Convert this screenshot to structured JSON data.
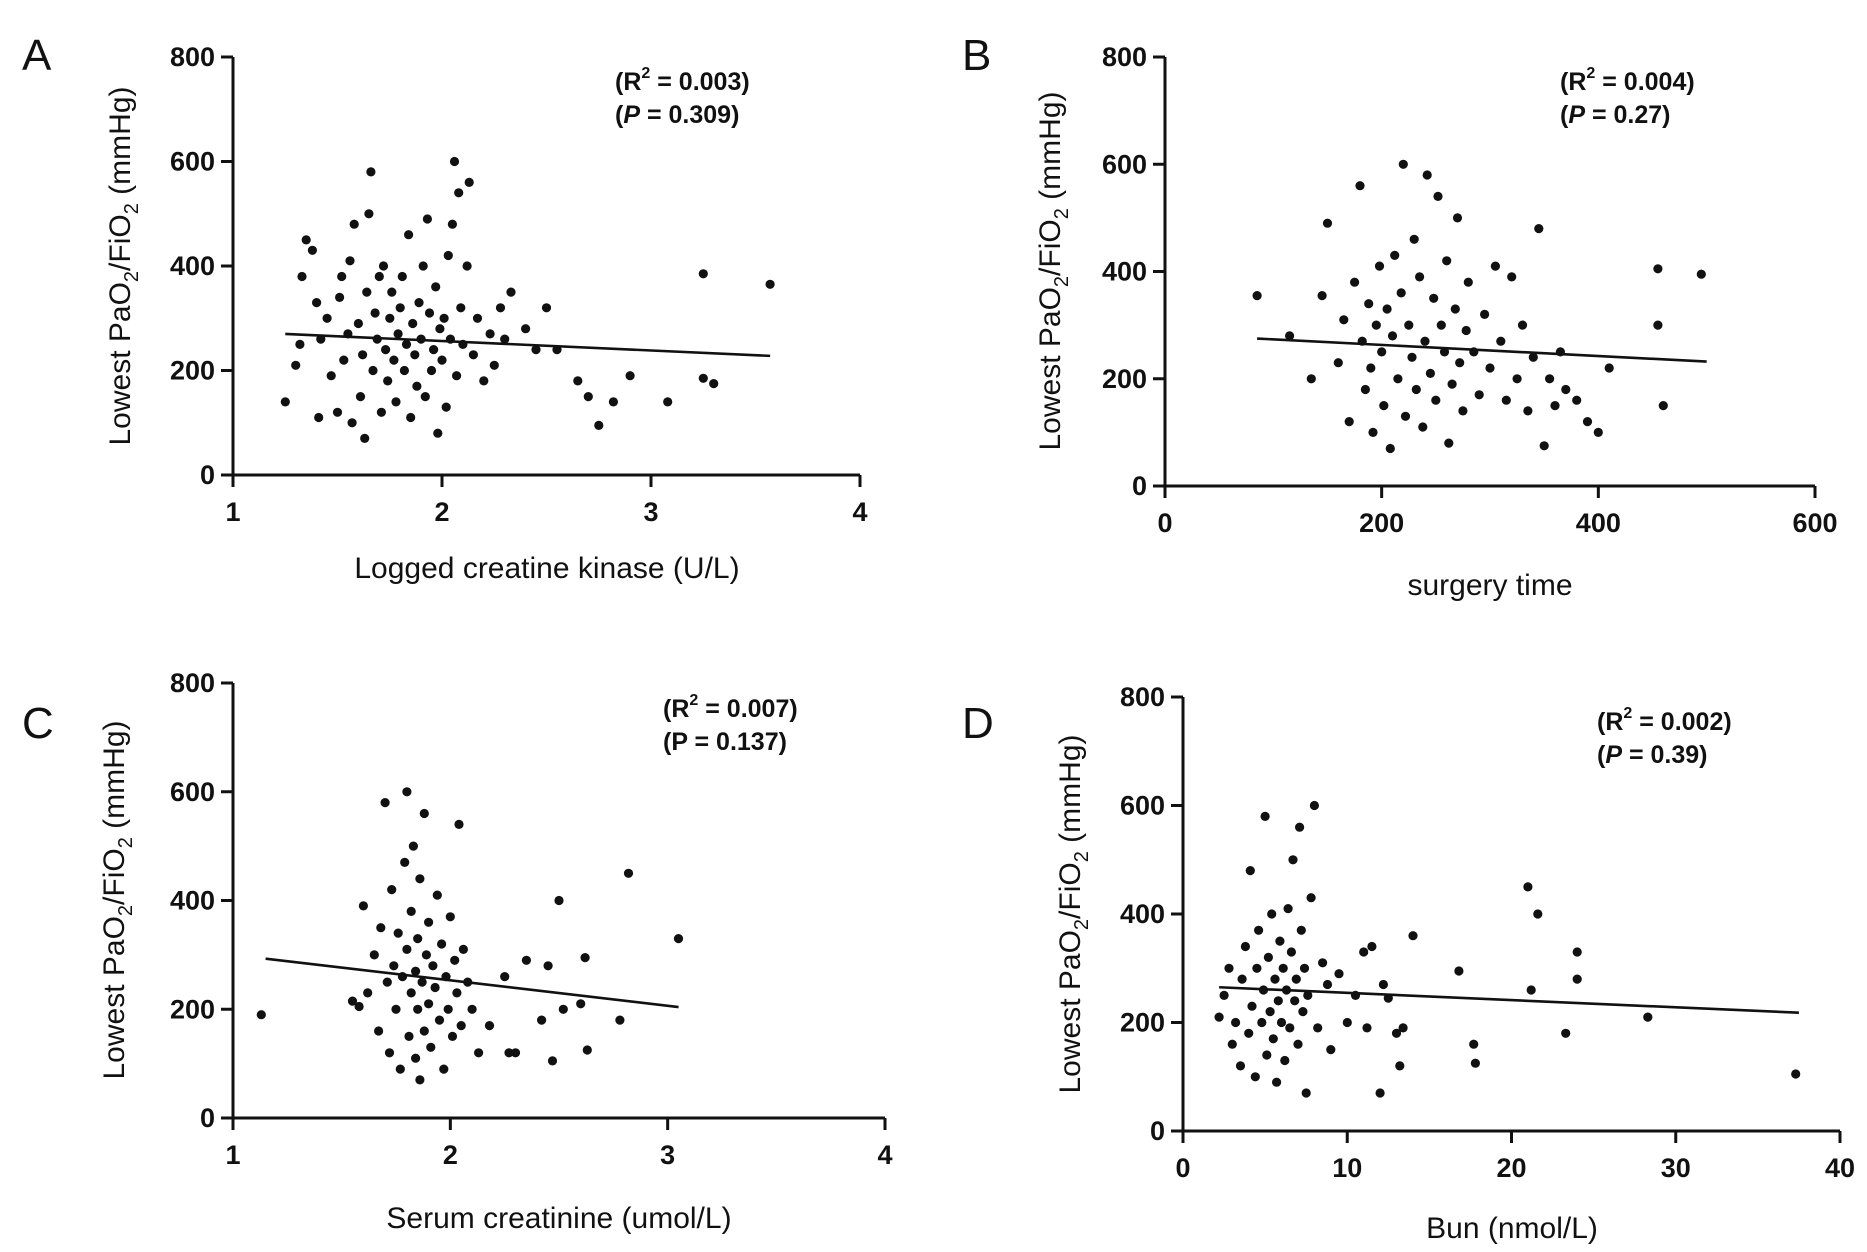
{
  "figure": {
    "y_axis_label_parts": [
      "Lowest PaO",
      "2",
      "/FiO",
      "2",
      " (mmHg)"
    ],
    "point_color": "#111111",
    "line_color": "#111111"
  },
  "chart_data": [
    {
      "type": "scatter",
      "panel": "A",
      "xlabel": "Logged creatine kinase (U/L)",
      "ylabel": "Lowest PaO2/FiO2 (mmHg)",
      "xlim": [
        1,
        4
      ],
      "ylim": [
        0,
        800
      ],
      "xticks": [
        1,
        2,
        3,
        4
      ],
      "yticks": [
        0,
        200,
        400,
        600,
        800
      ],
      "annotation": {
        "r2_prefix": "(R",
        "r2_sup": "2",
        "r2_value": " = 0.003)",
        "p_open": "(",
        "p_symbol": "P",
        "p_value": " = 0.309)",
        "p_italic": true
      },
      "regression": {
        "x": [
          1.25,
          3.57
        ],
        "y": [
          270,
          228
        ]
      },
      "points": [
        [
          1.25,
          140
        ],
        [
          1.3,
          210
        ],
        [
          1.32,
          250
        ],
        [
          1.33,
          380
        ],
        [
          1.35,
          450
        ],
        [
          1.38,
          430
        ],
        [
          1.4,
          330
        ],
        [
          1.41,
          110
        ],
        [
          1.42,
          260
        ],
        [
          1.45,
          300
        ],
        [
          1.47,
          190
        ],
        [
          1.5,
          120
        ],
        [
          1.51,
          340
        ],
        [
          1.52,
          380
        ],
        [
          1.53,
          220
        ],
        [
          1.55,
          270
        ],
        [
          1.56,
          410
        ],
        [
          1.57,
          100
        ],
        [
          1.58,
          480
        ],
        [
          1.6,
          290
        ],
        [
          1.61,
          150
        ],
        [
          1.62,
          230
        ],
        [
          1.63,
          70
        ],
        [
          1.64,
          350
        ],
        [
          1.65,
          500
        ],
        [
          1.66,
          580
        ],
        [
          1.67,
          200
        ],
        [
          1.68,
          310
        ],
        [
          1.69,
          260
        ],
        [
          1.7,
          380
        ],
        [
          1.71,
          120
        ],
        [
          1.72,
          400
        ],
        [
          1.73,
          240
        ],
        [
          1.74,
          180
        ],
        [
          1.75,
          300
        ],
        [
          1.76,
          350
        ],
        [
          1.77,
          220
        ],
        [
          1.78,
          140
        ],
        [
          1.79,
          270
        ],
        [
          1.8,
          320
        ],
        [
          1.81,
          380
        ],
        [
          1.82,
          200
        ],
        [
          1.83,
          250
        ],
        [
          1.84,
          460
        ],
        [
          1.85,
          110
        ],
        [
          1.86,
          290
        ],
        [
          1.87,
          230
        ],
        [
          1.88,
          170
        ],
        [
          1.89,
          330
        ],
        [
          1.9,
          260
        ],
        [
          1.91,
          400
        ],
        [
          1.92,
          150
        ],
        [
          1.93,
          490
        ],
        [
          1.94,
          310
        ],
        [
          1.95,
          200
        ],
        [
          1.96,
          240
        ],
        [
          1.97,
          360
        ],
        [
          1.98,
          80
        ],
        [
          1.99,
          280
        ],
        [
          2.0,
          220
        ],
        [
          2.01,
          300
        ],
        [
          2.02,
          130
        ],
        [
          2.03,
          420
        ],
        [
          2.04,
          260
        ],
        [
          2.05,
          480
        ],
        [
          2.06,
          600
        ],
        [
          2.07,
          190
        ],
        [
          2.08,
          540
        ],
        [
          2.09,
          320
        ],
        [
          2.1,
          250
        ],
        [
          2.12,
          400
        ],
        [
          2.13,
          560
        ],
        [
          2.15,
          230
        ],
        [
          2.17,
          300
        ],
        [
          2.2,
          180
        ],
        [
          2.23,
          270
        ],
        [
          2.25,
          210
        ],
        [
          2.28,
          320
        ],
        [
          2.3,
          260
        ],
        [
          2.33,
          350
        ],
        [
          2.4,
          280
        ],
        [
          2.45,
          240
        ],
        [
          2.5,
          320
        ],
        [
          2.55,
          240
        ],
        [
          2.65,
          180
        ],
        [
          2.7,
          150
        ],
        [
          2.75,
          95
        ],
        [
          2.82,
          140
        ],
        [
          2.9,
          190
        ],
        [
          3.08,
          140
        ],
        [
          3.25,
          385
        ],
        [
          3.25,
          185
        ],
        [
          3.3,
          175
        ],
        [
          3.57,
          365
        ]
      ]
    },
    {
      "type": "scatter",
      "panel": "B",
      "xlabel": "surgery time",
      "ylabel": "Lowest PaO2/FiO2 (mmHg)",
      "xlim": [
        0,
        600
      ],
      "ylim": [
        0,
        800
      ],
      "xticks": [
        0,
        200,
        400,
        600
      ],
      "yticks": [
        0,
        200,
        400,
        600,
        800
      ],
      "annotation": {
        "r2_prefix": "(R",
        "r2_sup": "2",
        "r2_value": " = 0.004)",
        "p_open": "(",
        "p_symbol": "P",
        "p_value": " = 0.27)",
        "p_italic": true
      },
      "regression": {
        "x": [
          85,
          500
        ],
        "y": [
          275,
          232
        ]
      },
      "points": [
        [
          85,
          355
        ],
        [
          115,
          280
        ],
        [
          135,
          200
        ],
        [
          145,
          355
        ],
        [
          150,
          490
        ],
        [
          160,
          230
        ],
        [
          165,
          310
        ],
        [
          170,
          120
        ],
        [
          175,
          380
        ],
        [
          180,
          560
        ],
        [
          182,
          270
        ],
        [
          185,
          180
        ],
        [
          188,
          340
        ],
        [
          190,
          220
        ],
        [
          192,
          100
        ],
        [
          195,
          300
        ],
        [
          198,
          410
        ],
        [
          200,
          250
        ],
        [
          202,
          150
        ],
        [
          205,
          330
        ],
        [
          208,
          70
        ],
        [
          210,
          280
        ],
        [
          212,
          430
        ],
        [
          215,
          200
        ],
        [
          218,
          360
        ],
        [
          220,
          600
        ],
        [
          222,
          130
        ],
        [
          225,
          300
        ],
        [
          228,
          240
        ],
        [
          230,
          460
        ],
        [
          232,
          180
        ],
        [
          235,
          390
        ],
        [
          238,
          110
        ],
        [
          240,
          270
        ],
        [
          242,
          580
        ],
        [
          245,
          210
        ],
        [
          248,
          350
        ],
        [
          250,
          160
        ],
        [
          252,
          540
        ],
        [
          255,
          300
        ],
        [
          258,
          250
        ],
        [
          260,
          420
        ],
        [
          262,
          80
        ],
        [
          265,
          190
        ],
        [
          268,
          330
        ],
        [
          270,
          500
        ],
        [
          272,
          230
        ],
        [
          275,
          140
        ],
        [
          278,
          290
        ],
        [
          280,
          380
        ],
        [
          285,
          250
        ],
        [
          290,
          170
        ],
        [
          295,
          320
        ],
        [
          300,
          220
        ],
        [
          305,
          410
        ],
        [
          310,
          270
        ],
        [
          315,
          160
        ],
        [
          320,
          390
        ],
        [
          325,
          200
        ],
        [
          330,
          300
        ],
        [
          335,
          140
        ],
        [
          340,
          240
        ],
        [
          345,
          480
        ],
        [
          350,
          75
        ],
        [
          355,
          200
        ],
        [
          360,
          150
        ],
        [
          365,
          250
        ],
        [
          370,
          180
        ],
        [
          380,
          160
        ],
        [
          390,
          120
        ],
        [
          400,
          100
        ],
        [
          410,
          220
        ],
        [
          455,
          300
        ],
        [
          460,
          150
        ],
        [
          495,
          395
        ],
        [
          455,
          405
        ]
      ]
    },
    {
      "type": "scatter",
      "panel": "C",
      "xlabel": "Serum creatinine (umol/L)",
      "ylabel": "Lowest PaO2/FiO2 (mmHg)",
      "xlim": [
        1,
        4
      ],
      "ylim": [
        0,
        800
      ],
      "xticks": [
        1,
        2,
        3,
        4
      ],
      "yticks": [
        0,
        200,
        400,
        600,
        800
      ],
      "annotation": {
        "r2_prefix": "(R",
        "r2_sup": "2",
        "r2_value": " = 0.007)",
        "p_open": "(",
        "p_symbol": "P",
        "p_value": " = 0.137)",
        "p_italic": false
      },
      "regression": {
        "x": [
          1.15,
          3.05
        ],
        "y": [
          293,
          204
        ]
      },
      "points": [
        [
          1.13,
          190
        ],
        [
          1.55,
          215
        ],
        [
          1.58,
          205
        ],
        [
          1.6,
          390
        ],
        [
          1.62,
          230
        ],
        [
          1.65,
          300
        ],
        [
          1.67,
          160
        ],
        [
          1.68,
          350
        ],
        [
          1.7,
          580
        ],
        [
          1.71,
          250
        ],
        [
          1.72,
          120
        ],
        [
          1.73,
          420
        ],
        [
          1.74,
          280
        ],
        [
          1.75,
          200
        ],
        [
          1.76,
          340
        ],
        [
          1.77,
          90
        ],
        [
          1.78,
          260
        ],
        [
          1.79,
          470
        ],
        [
          1.8,
          600
        ],
        [
          1.8,
          310
        ],
        [
          1.81,
          150
        ],
        [
          1.82,
          230
        ],
        [
          1.82,
          380
        ],
        [
          1.83,
          500
        ],
        [
          1.84,
          270
        ],
        [
          1.84,
          110
        ],
        [
          1.85,
          200
        ],
        [
          1.85,
          330
        ],
        [
          1.86,
          440
        ],
        [
          1.86,
          70
        ],
        [
          1.87,
          250
        ],
        [
          1.88,
          160
        ],
        [
          1.88,
          560
        ],
        [
          1.89,
          300
        ],
        [
          1.9,
          210
        ],
        [
          1.9,
          360
        ],
        [
          1.91,
          130
        ],
        [
          1.92,
          280
        ],
        [
          1.93,
          240
        ],
        [
          1.94,
          410
        ],
        [
          1.95,
          180
        ],
        [
          1.96,
          320
        ],
        [
          1.97,
          90
        ],
        [
          1.98,
          260
        ],
        [
          1.99,
          200
        ],
        [
          2.0,
          370
        ],
        [
          2.01,
          150
        ],
        [
          2.02,
          290
        ],
        [
          2.03,
          230
        ],
        [
          2.04,
          540
        ],
        [
          2.05,
          170
        ],
        [
          2.06,
          310
        ],
        [
          2.08,
          250
        ],
        [
          2.1,
          200
        ],
        [
          2.13,
          120
        ],
        [
          2.18,
          170
        ],
        [
          2.25,
          260
        ],
        [
          2.27,
          120
        ],
        [
          2.3,
          120
        ],
        [
          2.35,
          290
        ],
        [
          2.42,
          180
        ],
        [
          2.45,
          280
        ],
        [
          2.47,
          105
        ],
        [
          2.5,
          400
        ],
        [
          2.52,
          200
        ],
        [
          2.6,
          210
        ],
        [
          2.62,
          295
        ],
        [
          2.63,
          125
        ],
        [
          2.78,
          180
        ],
        [
          2.82,
          450
        ],
        [
          3.05,
          330
        ]
      ]
    },
    {
      "type": "scatter",
      "panel": "D",
      "xlabel": "Bun (nmol/L)",
      "ylabel": "Lowest PaO2/FiO2 (mmHg)",
      "xlim": [
        0,
        40
      ],
      "ylim": [
        0,
        800
      ],
      "xticks": [
        0,
        10,
        20,
        30,
        40
      ],
      "yticks": [
        0,
        200,
        400,
        600,
        800
      ],
      "annotation": {
        "r2_prefix": "(R",
        "r2_sup": "2",
        "r2_value": " = 0.002)",
        "p_open": "(",
        "p_symbol": "P",
        "p_value": " = 0.39)",
        "p_italic": true
      },
      "regression": {
        "x": [
          2.2,
          37.5
        ],
        "y": [
          265,
          218
        ]
      },
      "points": [
        [
          2.2,
          210
        ],
        [
          2.5,
          250
        ],
        [
          2.8,
          300
        ],
        [
          3.0,
          160
        ],
        [
          3.2,
          200
        ],
        [
          3.5,
          120
        ],
        [
          3.6,
          280
        ],
        [
          3.8,
          340
        ],
        [
          4.0,
          180
        ],
        [
          4.1,
          480
        ],
        [
          4.2,
          230
        ],
        [
          4.4,
          100
        ],
        [
          4.5,
          300
        ],
        [
          4.6,
          370
        ],
        [
          4.8,
          200
        ],
        [
          4.9,
          260
        ],
        [
          5.0,
          580
        ],
        [
          5.1,
          140
        ],
        [
          5.2,
          320
        ],
        [
          5.3,
          220
        ],
        [
          5.4,
          400
        ],
        [
          5.5,
          170
        ],
        [
          5.6,
          280
        ],
        [
          5.7,
          90
        ],
        [
          5.8,
          240
        ],
        [
          5.9,
          350
        ],
        [
          6.0,
          200
        ],
        [
          6.1,
          300
        ],
        [
          6.2,
          130
        ],
        [
          6.3,
          260
        ],
        [
          6.4,
          410
        ],
        [
          6.5,
          190
        ],
        [
          6.6,
          330
        ],
        [
          6.7,
          500
        ],
        [
          6.8,
          240
        ],
        [
          6.9,
          280
        ],
        [
          7.0,
          160
        ],
        [
          7.1,
          560
        ],
        [
          7.2,
          370
        ],
        [
          7.3,
          220
        ],
        [
          7.4,
          300
        ],
        [
          7.5,
          70
        ],
        [
          7.6,
          250
        ],
        [
          7.8,
          430
        ],
        [
          8.0,
          600
        ],
        [
          8.2,
          190
        ],
        [
          8.5,
          310
        ],
        [
          8.8,
          270
        ],
        [
          9.0,
          150
        ],
        [
          9.5,
          290
        ],
        [
          10.0,
          200
        ],
        [
          10.5,
          250
        ],
        [
          11.0,
          330
        ],
        [
          11.2,
          190
        ],
        [
          11.5,
          340
        ],
        [
          12.0,
          70
        ],
        [
          12.2,
          270
        ],
        [
          12.5,
          245
        ],
        [
          13.0,
          180
        ],
        [
          13.2,
          120
        ],
        [
          13.4,
          190
        ],
        [
          14.0,
          360
        ],
        [
          16.8,
          295
        ],
        [
          17.7,
          160
        ],
        [
          17.8,
          125
        ],
        [
          21.0,
          450
        ],
        [
          21.2,
          260
        ],
        [
          21.6,
          400
        ],
        [
          23.3,
          180
        ],
        [
          24.0,
          330
        ],
        [
          24.0,
          280
        ],
        [
          28.3,
          210
        ],
        [
          37.3,
          105
        ]
      ]
    }
  ]
}
